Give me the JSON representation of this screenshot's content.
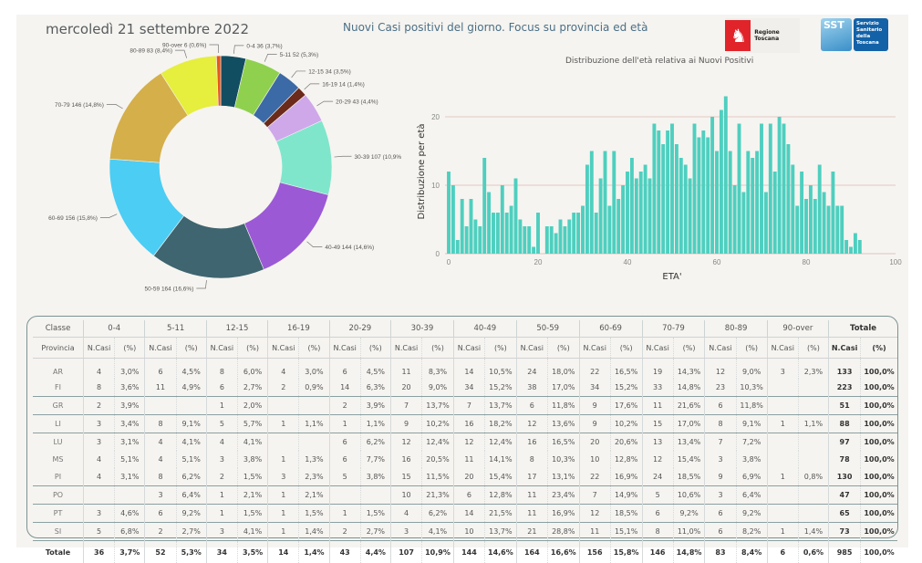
{
  "header": {
    "date": "mercoledì 21 settembre 2022",
    "title": "Nuovi Casi positivi del giorno. Focus su provincia ed età",
    "logo_regione": "Regione Toscana",
    "logo_sst_short": "SST",
    "logo_sst_lines": [
      "Servizio",
      "Sanitario",
      "della",
      "Toscana"
    ]
  },
  "chart_data": [
    {
      "type": "pie",
      "donut": true,
      "title": "",
      "slices": [
        {
          "label": "0-4",
          "value": 36,
          "pct": "3,7%",
          "color": "#124e62"
        },
        {
          "label": "5-11",
          "value": 52,
          "pct": "5,3%",
          "color": "#8fd14f"
        },
        {
          "label": "12-15",
          "value": 34,
          "pct": "3,5%",
          "color": "#3b6aa6"
        },
        {
          "label": "16-19",
          "value": 14,
          "pct": "1,4%",
          "color": "#6b2a1a"
        },
        {
          "label": "20-29",
          "value": 43,
          "pct": "4,4%",
          "color": "#cfa8ea"
        },
        {
          "label": "30-39",
          "value": 107,
          "pct": "10,9%",
          "color": "#7fe6cc"
        },
        {
          "label": "40-49",
          "value": 144,
          "pct": "14,6%",
          "color": "#9b59d6"
        },
        {
          "label": "50-59",
          "value": 164,
          "pct": "16,6%",
          "color": "#3e6570"
        },
        {
          "label": "60-69",
          "value": 156,
          "pct": "15,8%",
          "color": "#4ccdf4"
        },
        {
          "label": "70-79",
          "value": 146,
          "pct": "14,8%",
          "color": "#d4af4a"
        },
        {
          "label": "80-89",
          "value": 83,
          "pct": "8,4%",
          "color": "#e6ee3e"
        },
        {
          "label": "90-over",
          "value": 6,
          "pct": "0,6%",
          "color": "#e8561c"
        }
      ]
    },
    {
      "type": "bar",
      "title": "Distribuzione dell'età relativa ai Nuovi Positivi",
      "xlabel": "ETA'",
      "ylabel": "Distribuzione per età",
      "xlim": [
        0,
        100
      ],
      "ylim": [
        0,
        24
      ],
      "xticks": [
        0,
        20,
        40,
        60,
        80,
        100
      ],
      "yticks": [
        0,
        10,
        20
      ],
      "grid": true,
      "color": "#4ecfbf",
      "x": [
        0,
        1,
        2,
        3,
        4,
        5,
        6,
        7,
        8,
        9,
        10,
        11,
        12,
        13,
        14,
        15,
        16,
        17,
        18,
        19,
        20,
        21,
        22,
        23,
        24,
        25,
        26,
        27,
        28,
        29,
        30,
        31,
        32,
        33,
        34,
        35,
        36,
        37,
        38,
        39,
        40,
        41,
        42,
        43,
        44,
        45,
        46,
        47,
        48,
        49,
        50,
        51,
        52,
        53,
        54,
        55,
        56,
        57,
        58,
        59,
        60,
        61,
        62,
        63,
        64,
        65,
        66,
        67,
        68,
        69,
        70,
        71,
        72,
        73,
        74,
        75,
        76,
        77,
        78,
        79,
        80,
        81,
        82,
        83,
        84,
        85,
        86,
        87,
        88,
        89,
        90,
        91,
        92
      ],
      "values": [
        12,
        10,
        2,
        8,
        4,
        8,
        5,
        4,
        14,
        9,
        6,
        6,
        10,
        6,
        7,
        11,
        5,
        4,
        4,
        1,
        6,
        0,
        4,
        4,
        3,
        5,
        4,
        5,
        6,
        6,
        7,
        13,
        15,
        6,
        11,
        15,
        7,
        15,
        8,
        10,
        12,
        14,
        11,
        12,
        13,
        11,
        19,
        18,
        16,
        18,
        19,
        16,
        14,
        13,
        11,
        19,
        17,
        18,
        17,
        20,
        15,
        21,
        23,
        15,
        10,
        19,
        9,
        15,
        14,
        15,
        19,
        9,
        19,
        12,
        20,
        19,
        16,
        13,
        7,
        12,
        8,
        10,
        8,
        13,
        9,
        7,
        12,
        7,
        7,
        2,
        1,
        3,
        2
      ]
    }
  ],
  "table": {
    "corner_top": "Classe",
    "corner_bottom": "Provincia",
    "groups": [
      "0-4",
      "5-11",
      "12-15",
      "16-19",
      "20-29",
      "30-39",
      "40-49",
      "50-59",
      "60-69",
      "70-79",
      "80-89",
      "90-over",
      "Totale"
    ],
    "sub_n": "N.Casi",
    "sub_p": "(%)",
    "rows": [
      {
        "prov": "AR",
        "cells": [
          [
            "4",
            "3,0%"
          ],
          [
            "6",
            "4,5%"
          ],
          [
            "8",
            "6,0%"
          ],
          [
            "4",
            "3,0%"
          ],
          [
            "6",
            "4,5%"
          ],
          [
            "11",
            "8,3%"
          ],
          [
            "14",
            "10,5%"
          ],
          [
            "24",
            "18,0%"
          ],
          [
            "22",
            "16,5%"
          ],
          [
            "19",
            "14,3%"
          ],
          [
            "12",
            "9,0%"
          ],
          [
            "3",
            "2,3%"
          ],
          [
            "133",
            "100,0%"
          ]
        ]
      },
      {
        "prov": "FI",
        "cells": [
          [
            "8",
            "3,6%"
          ],
          [
            "11",
            "4,9%"
          ],
          [
            "6",
            "2,7%"
          ],
          [
            "2",
            "0,9%"
          ],
          [
            "14",
            "6,3%"
          ],
          [
            "20",
            "9,0%"
          ],
          [
            "34",
            "15,2%"
          ],
          [
            "38",
            "17,0%"
          ],
          [
            "34",
            "15,2%"
          ],
          [
            "33",
            "14,8%"
          ],
          [
            "23",
            "10,3%"
          ],
          [
            "",
            ""
          ],
          [
            "223",
            "100,0%"
          ]
        ]
      },
      {
        "prov": "GR",
        "cells": [
          [
            "2",
            "3,9%"
          ],
          [
            "",
            ""
          ],
          [
            "1",
            "2,0%"
          ],
          [
            "",
            ""
          ],
          [
            "2",
            "3,9%"
          ],
          [
            "7",
            "13,7%"
          ],
          [
            "7",
            "13,7%"
          ],
          [
            "6",
            "11,8%"
          ],
          [
            "9",
            "17,6%"
          ],
          [
            "11",
            "21,6%"
          ],
          [
            "6",
            "11,8%"
          ],
          [
            "",
            ""
          ],
          [
            "51",
            "100,0%"
          ]
        ]
      },
      {
        "prov": "LI",
        "cells": [
          [
            "3",
            "3,4%"
          ],
          [
            "8",
            "9,1%"
          ],
          [
            "5",
            "5,7%"
          ],
          [
            "1",
            "1,1%"
          ],
          [
            "1",
            "1,1%"
          ],
          [
            "9",
            "10,2%"
          ],
          [
            "16",
            "18,2%"
          ],
          [
            "12",
            "13,6%"
          ],
          [
            "9",
            "10,2%"
          ],
          [
            "15",
            "17,0%"
          ],
          [
            "8",
            "9,1%"
          ],
          [
            "1",
            "1,1%"
          ],
          [
            "88",
            "100,0%"
          ]
        ]
      },
      {
        "prov": "LU",
        "cells": [
          [
            "3",
            "3,1%"
          ],
          [
            "4",
            "4,1%"
          ],
          [
            "4",
            "4,1%"
          ],
          [
            "",
            ""
          ],
          [
            "6",
            "6,2%"
          ],
          [
            "12",
            "12,4%"
          ],
          [
            "12",
            "12,4%"
          ],
          [
            "16",
            "16,5%"
          ],
          [
            "20",
            "20,6%"
          ],
          [
            "13",
            "13,4%"
          ],
          [
            "7",
            "7,2%"
          ],
          [
            "",
            ""
          ],
          [
            "97",
            "100,0%"
          ]
        ]
      },
      {
        "prov": "MS",
        "cells": [
          [
            "4",
            "5,1%"
          ],
          [
            "4",
            "5,1%"
          ],
          [
            "3",
            "3,8%"
          ],
          [
            "1",
            "1,3%"
          ],
          [
            "6",
            "7,7%"
          ],
          [
            "16",
            "20,5%"
          ],
          [
            "11",
            "14,1%"
          ],
          [
            "8",
            "10,3%"
          ],
          [
            "10",
            "12,8%"
          ],
          [
            "12",
            "15,4%"
          ],
          [
            "3",
            "3,8%"
          ],
          [
            "",
            ""
          ],
          [
            "78",
            "100,0%"
          ]
        ]
      },
      {
        "prov": "PI",
        "cells": [
          [
            "4",
            "3,1%"
          ],
          [
            "8",
            "6,2%"
          ],
          [
            "2",
            "1,5%"
          ],
          [
            "3",
            "2,3%"
          ],
          [
            "5",
            "3,8%"
          ],
          [
            "15",
            "11,5%"
          ],
          [
            "20",
            "15,4%"
          ],
          [
            "17",
            "13,1%"
          ],
          [
            "22",
            "16,9%"
          ],
          [
            "24",
            "18,5%"
          ],
          [
            "9",
            "6,9%"
          ],
          [
            "1",
            "0,8%"
          ],
          [
            "130",
            "100,0%"
          ]
        ]
      },
      {
        "prov": "PO",
        "cells": [
          [
            "",
            ""
          ],
          [
            "3",
            "6,4%"
          ],
          [
            "1",
            "2,1%"
          ],
          [
            "1",
            "2,1%"
          ],
          [
            "",
            ""
          ],
          [
            "10",
            "21,3%"
          ],
          [
            "6",
            "12,8%"
          ],
          [
            "11",
            "23,4%"
          ],
          [
            "7",
            "14,9%"
          ],
          [
            "5",
            "10,6%"
          ],
          [
            "3",
            "6,4%"
          ],
          [
            "",
            ""
          ],
          [
            "47",
            "100,0%"
          ]
        ]
      },
      {
        "prov": "PT",
        "cells": [
          [
            "3",
            "4,6%"
          ],
          [
            "6",
            "9,2%"
          ],
          [
            "1",
            "1,5%"
          ],
          [
            "1",
            "1,5%"
          ],
          [
            "1",
            "1,5%"
          ],
          [
            "4",
            "6,2%"
          ],
          [
            "14",
            "21,5%"
          ],
          [
            "11",
            "16,9%"
          ],
          [
            "12",
            "18,5%"
          ],
          [
            "6",
            "9,2%"
          ],
          [
            "6",
            "9,2%"
          ],
          [
            "",
            ""
          ],
          [
            "65",
            "100,0%"
          ]
        ]
      },
      {
        "prov": "SI",
        "cells": [
          [
            "5",
            "6,8%"
          ],
          [
            "2",
            "2,7%"
          ],
          [
            "3",
            "4,1%"
          ],
          [
            "1",
            "1,4%"
          ],
          [
            "2",
            "2,7%"
          ],
          [
            "3",
            "4,1%"
          ],
          [
            "10",
            "13,7%"
          ],
          [
            "21",
            "28,8%"
          ],
          [
            "11",
            "15,1%"
          ],
          [
            "8",
            "11,0%"
          ],
          [
            "6",
            "8,2%"
          ],
          [
            "1",
            "1,4%"
          ],
          [
            "73",
            "100,0%"
          ]
        ]
      }
    ],
    "total_row": {
      "prov": "Totale",
      "cells": [
        [
          "36",
          "3,7%"
        ],
        [
          "52",
          "5,3%"
        ],
        [
          "34",
          "3,5%"
        ],
        [
          "14",
          "1,4%"
        ],
        [
          "43",
          "4,4%"
        ],
        [
          "107",
          "10,9%"
        ],
        [
          "144",
          "14,6%"
        ],
        [
          "164",
          "16,6%"
        ],
        [
          "156",
          "15,8%"
        ],
        [
          "146",
          "14,8%"
        ],
        [
          "83",
          "8,4%"
        ],
        [
          "6",
          "0,6%"
        ],
        [
          "985",
          "100,0%"
        ]
      ]
    }
  }
}
